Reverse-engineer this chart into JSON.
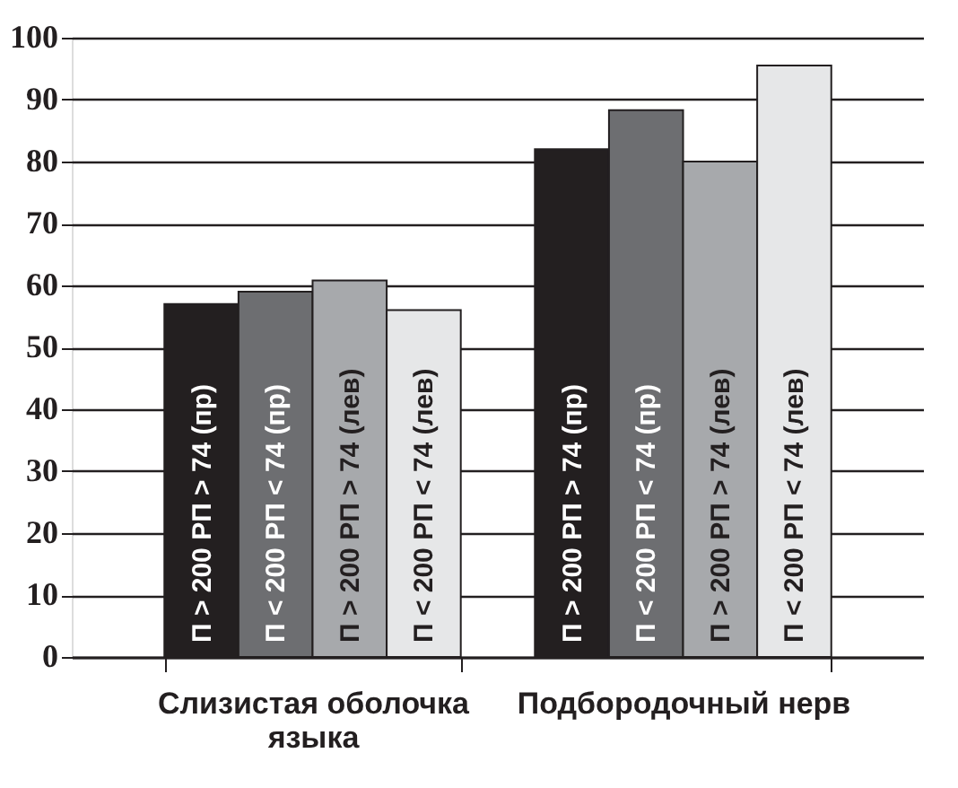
{
  "chart_data": {
    "type": "bar",
    "categories": [
      "Слизистая оболочка языка",
      "Подбородочный нерв"
    ],
    "series": [
      {
        "name": "П > 200 РП > 74 (пр)",
        "color": "#231f20",
        "values": [
          57,
          82
        ]
      },
      {
        "name": "П < 200 РП < 74 (пр)",
        "color": "#6d6e71",
        "values": [
          59,
          88.3
        ]
      },
      {
        "name": "П > 200 РП > 74 (лев)",
        "color": "#a7a9ac",
        "values": [
          60.8,
          80
        ]
      },
      {
        "name": "П < 200 РП < 74 (лев)",
        "color": "#e6e7e8",
        "values": [
          56,
          95.5
        ]
      }
    ],
    "ylim": [
      0,
      100
    ],
    "yticks": [
      0,
      10,
      20,
      30,
      40,
      50,
      60,
      70,
      80,
      90,
      100
    ],
    "grid": "y",
    "legend": false
  }
}
